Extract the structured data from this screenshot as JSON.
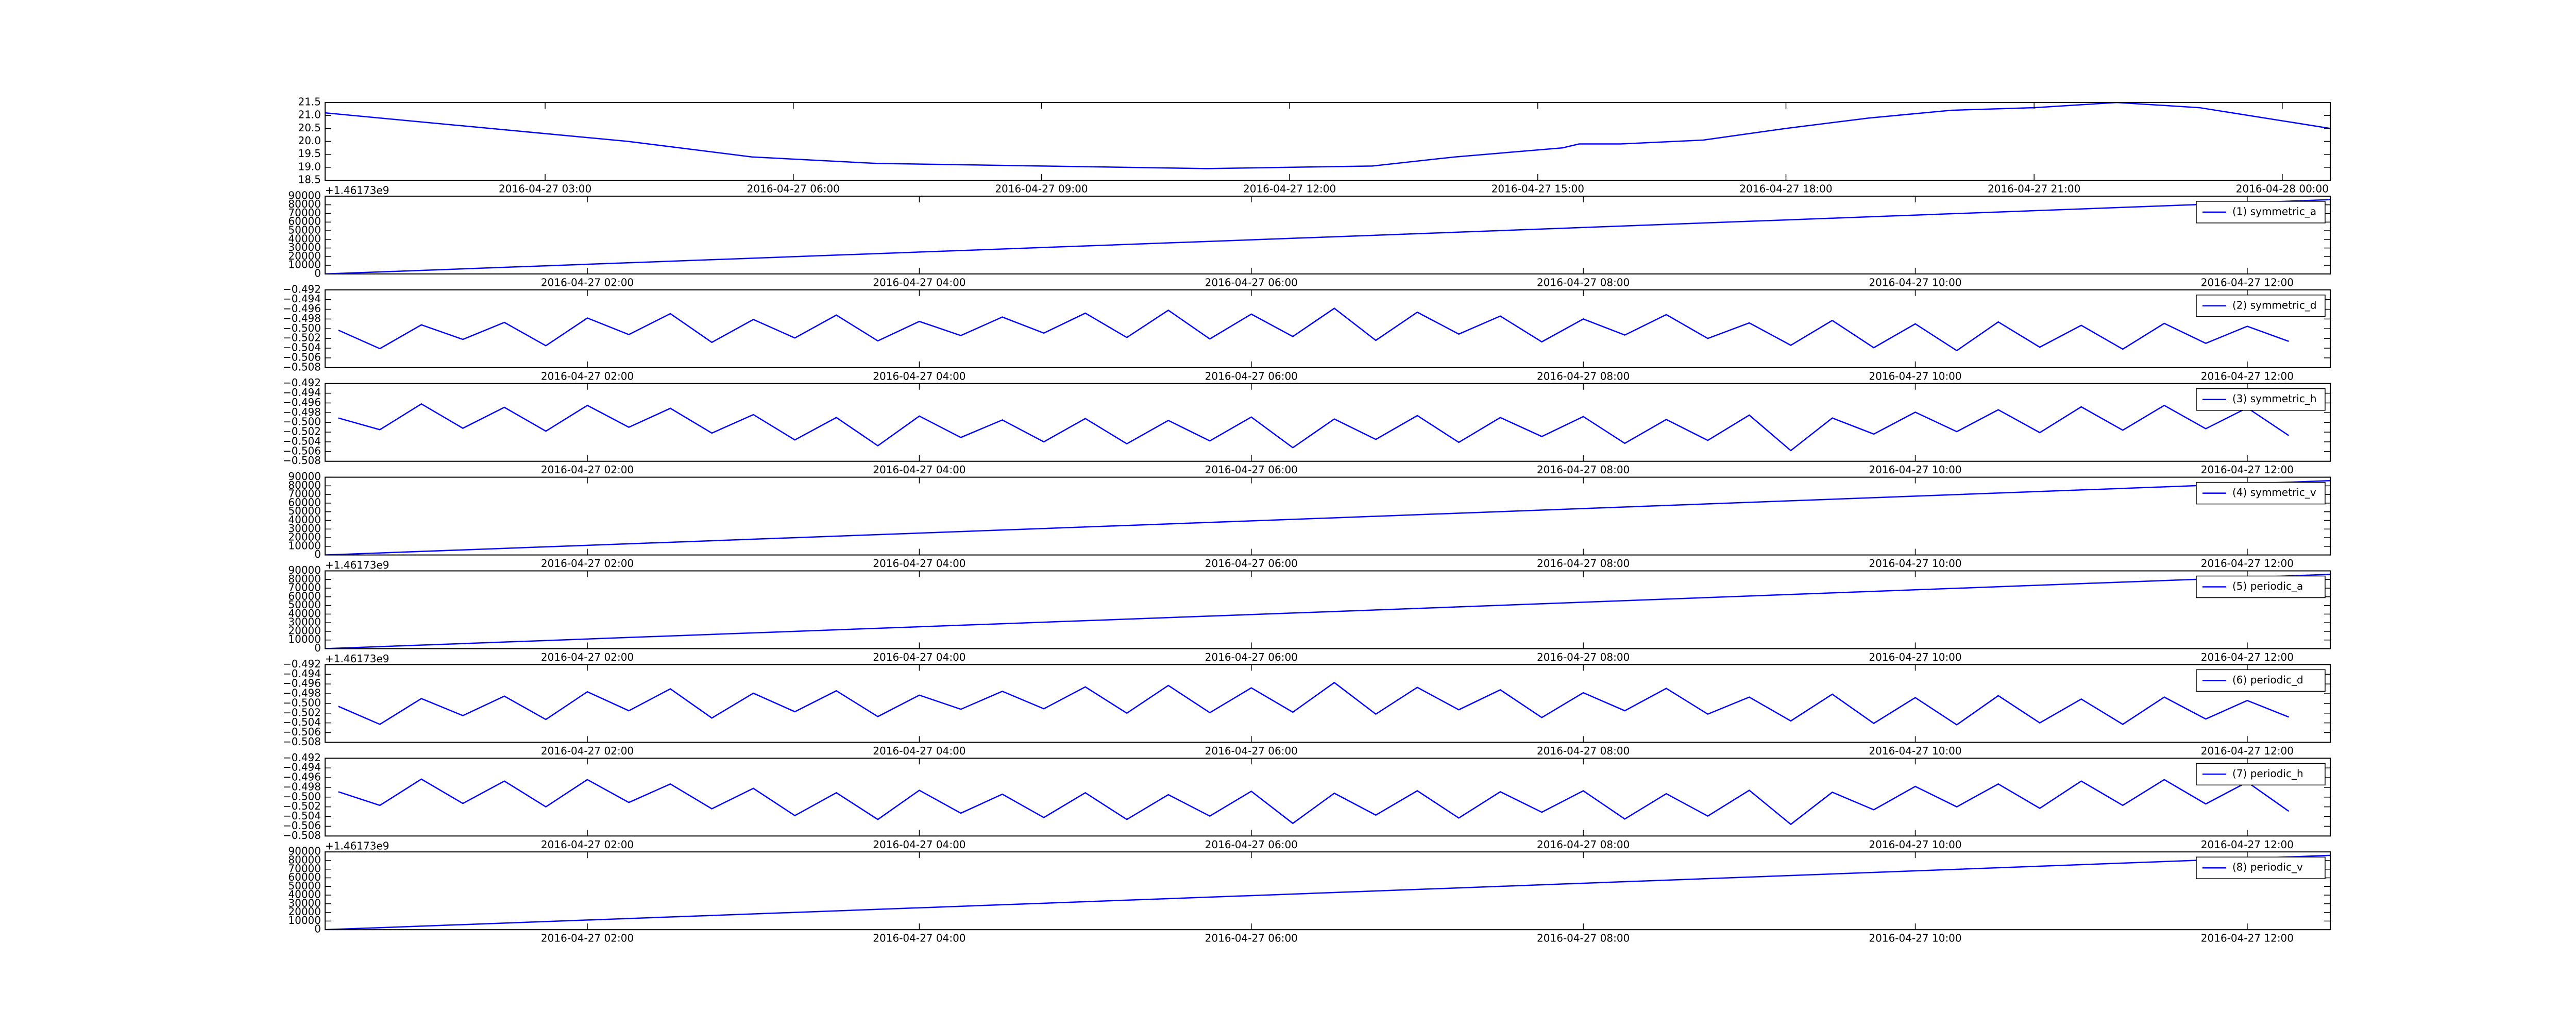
{
  "chart_data": [
    {
      "type": "line",
      "xlim": [
        0.34,
        24.58
      ],
      "ylim": [
        18.5,
        21.5
      ],
      "xticks": [
        {
          "value": 3,
          "label": "2016-04-27 03:00"
        },
        {
          "value": 6,
          "label": "2016-04-27 06:00"
        },
        {
          "value": 9,
          "label": "2016-04-27 09:00"
        },
        {
          "value": 12,
          "label": "2016-04-27 12:00"
        },
        {
          "value": 15,
          "label": "2016-04-27 15:00"
        },
        {
          "value": 18,
          "label": "2016-04-27 18:00"
        },
        {
          "value": 21,
          "label": "2016-04-27 21:00"
        },
        {
          "value": 24,
          "label": "2016-04-28 00:00"
        }
      ],
      "yticks": [
        18.5,
        {
          "value": 19,
          "label": "19.0"
        },
        19.5,
        {
          "value": 20,
          "label": "20.0"
        },
        20.5,
        {
          "value": 21,
          "label": "21.0"
        },
        21.5
      ],
      "x": [
        0.34,
        2,
        4,
        5.5,
        7,
        9,
        11,
        13,
        14,
        15.3,
        15.5,
        16,
        17,
        18,
        19,
        20,
        21,
        22,
        23,
        24.58
      ],
      "series": [
        {
          "color": "#0000ff",
          "values": [
            21.1,
            20.6,
            20.0,
            19.4,
            19.15,
            19.05,
            18.95,
            19.05,
            19.4,
            19.75,
            19.9,
            19.9,
            20.05,
            20.5,
            20.9,
            21.2,
            21.3,
            21.5,
            21.3,
            20.5
          ]
        }
      ]
    },
    {
      "type": "line",
      "offset_label": "+1.46173e9",
      "legend": "upper right",
      "xlim": [
        0.42,
        12.5
      ],
      "ylim": [
        0,
        90000
      ],
      "xticks": [
        {
          "value": 2,
          "label": "2016-04-27 02:00"
        },
        {
          "value": 4,
          "label": "2016-04-27 04:00"
        },
        {
          "value": 6,
          "label": "2016-04-27 06:00"
        },
        {
          "value": 8,
          "label": "2016-04-27 08:00"
        },
        {
          "value": 10,
          "label": "2016-04-27 10:00"
        },
        {
          "value": 12,
          "label": "2016-04-27 12:00"
        }
      ],
      "yticks": [
        0,
        10000,
        20000,
        30000,
        40000,
        50000,
        60000,
        70000,
        80000,
        90000
      ],
      "x": [
        0.42,
        6.5,
        12.5
      ],
      "series": [
        {
          "name": "(1) symmetric_a",
          "color": "#0000ff",
          "values": [
            0,
            43000,
            86000
          ]
        }
      ]
    },
    {
      "type": "line",
      "legend": "upper right",
      "xlim": [
        0.42,
        12.5
      ],
      "ylim": [
        -0.508,
        -0.492
      ],
      "xticks": [
        {
          "value": 2,
          "label": "2016-04-27 02:00"
        },
        {
          "value": 4,
          "label": "2016-04-27 04:00"
        },
        {
          "value": 6,
          "label": "2016-04-27 06:00"
        },
        {
          "value": 8,
          "label": "2016-04-27 08:00"
        },
        {
          "value": 10,
          "label": "2016-04-27 10:00"
        },
        {
          "value": 12,
          "label": "2016-04-27 12:00"
        }
      ],
      "yticks": [
        {
          "value": -0.508,
          "label": "−0.508"
        },
        {
          "value": -0.506,
          "label": "−0.506"
        },
        {
          "value": -0.504,
          "label": "−0.504"
        },
        {
          "value": -0.502,
          "label": "−0.502"
        },
        {
          "value": -0.5,
          "label": "−0.500"
        },
        {
          "value": -0.498,
          "label": "−0.498"
        },
        {
          "value": -0.496,
          "label": "−0.496"
        },
        {
          "value": -0.494,
          "label": "−0.494"
        },
        {
          "value": -0.492,
          "label": "−0.492"
        }
      ],
      "x": [
        0.5,
        0.75,
        1,
        1.25,
        1.5,
        1.75,
        2,
        2.25,
        2.5,
        2.75,
        3,
        3.25,
        3.5,
        3.75,
        4,
        4.25,
        4.5,
        4.75,
        5,
        5.25,
        5.5,
        5.75,
        6,
        6.25,
        6.5,
        6.75,
        7,
        7.25,
        7.5,
        7.75,
        8,
        8.25,
        8.5,
        8.75,
        9,
        9.25,
        9.5,
        9.75,
        10,
        10.25,
        10.5,
        10.75,
        11,
        11.25,
        11.5,
        11.75,
        12,
        12.25
      ],
      "series": [
        {
          "name": "(2) symmetric_d",
          "color": "#0000ff",
          "values": [
            -0.5003,
            -0.5041,
            -0.4992,
            -0.5022,
            -0.4987,
            -0.5035,
            -0.4978,
            -0.5012,
            -0.4969,
            -0.5028,
            -0.4981,
            -0.5019,
            -0.4972,
            -0.5025,
            -0.4985,
            -0.5014,
            -0.4976,
            -0.5009,
            -0.4968,
            -0.5018,
            -0.4962,
            -0.5021,
            -0.497,
            -0.5016,
            -0.4958,
            -0.5024,
            -0.4966,
            -0.5011,
            -0.4974,
            -0.5027,
            -0.498,
            -0.5013,
            -0.4971,
            -0.502,
            -0.4988,
            -0.5034,
            -0.4983,
            -0.5039,
            -0.499,
            -0.5045,
            -0.4986,
            -0.5038,
            -0.4993,
            -0.5042,
            -0.4989,
            -0.503,
            -0.4995,
            -0.5026
          ]
        }
      ]
    },
    {
      "type": "line",
      "legend": "upper right",
      "xlim": [
        0.42,
        12.5
      ],
      "ylim": [
        -0.508,
        -0.492
      ],
      "xticks": [
        {
          "value": 2,
          "label": "2016-04-27 02:00"
        },
        {
          "value": 4,
          "label": "2016-04-27 04:00"
        },
        {
          "value": 6,
          "label": "2016-04-27 06:00"
        },
        {
          "value": 8,
          "label": "2016-04-27 08:00"
        },
        {
          "value": 10,
          "label": "2016-04-27 10:00"
        },
        {
          "value": 12,
          "label": "2016-04-27 12:00"
        }
      ],
      "yticks": [
        {
          "value": -0.508,
          "label": "−0.508"
        },
        {
          "value": -0.506,
          "label": "−0.506"
        },
        {
          "value": -0.504,
          "label": "−0.504"
        },
        {
          "value": -0.502,
          "label": "−0.502"
        },
        {
          "value": -0.5,
          "label": "−0.500"
        },
        {
          "value": -0.498,
          "label": "−0.498"
        },
        {
          "value": -0.496,
          "label": "−0.496"
        },
        {
          "value": -0.494,
          "label": "−0.494"
        },
        {
          "value": -0.492,
          "label": "−0.492"
        }
      ],
      "x": [
        0.5,
        0.75,
        1,
        1.25,
        1.5,
        1.75,
        2,
        2.25,
        2.5,
        2.75,
        3,
        3.25,
        3.5,
        3.75,
        4,
        4.25,
        4.5,
        4.75,
        5,
        5.25,
        5.5,
        5.75,
        6,
        6.25,
        6.5,
        6.75,
        7,
        7.25,
        7.5,
        7.75,
        8,
        8.25,
        8.5,
        8.75,
        9,
        9.25,
        9.5,
        9.75,
        10,
        10.25,
        10.5,
        10.75,
        11,
        11.25,
        11.5,
        11.75,
        12,
        12.25
      ],
      "series": [
        {
          "name": "(3) symmetric_h",
          "color": "#0000ff",
          "values": [
            -0.4991,
            -0.5015,
            -0.4962,
            -0.5012,
            -0.4969,
            -0.5018,
            -0.4965,
            -0.501,
            -0.4971,
            -0.5022,
            -0.4984,
            -0.5036,
            -0.499,
            -0.5048,
            -0.4987,
            -0.5031,
            -0.4995,
            -0.504,
            -0.4992,
            -0.5044,
            -0.4996,
            -0.5038,
            -0.4989,
            -0.5052,
            -0.4993,
            -0.5035,
            -0.4986,
            -0.5041,
            -0.499,
            -0.5029,
            -0.4988,
            -0.5043,
            -0.4994,
            -0.5037,
            -0.4985,
            -0.5058,
            -0.4991,
            -0.5024,
            -0.4979,
            -0.5019,
            -0.4974,
            -0.5021,
            -0.4968,
            -0.5016,
            -0.4965,
            -0.5013,
            -0.497,
            -0.5027
          ]
        }
      ]
    },
    {
      "type": "line",
      "legend": "upper right",
      "xlim": [
        0.42,
        12.5
      ],
      "ylim": [
        0,
        90000
      ],
      "xticks": [
        {
          "value": 2,
          "label": "2016-04-27 02:00"
        },
        {
          "value": 4,
          "label": "2016-04-27 04:00"
        },
        {
          "value": 6,
          "label": "2016-04-27 06:00"
        },
        {
          "value": 8,
          "label": "2016-04-27 08:00"
        },
        {
          "value": 10,
          "label": "2016-04-27 10:00"
        },
        {
          "value": 12,
          "label": "2016-04-27 12:00"
        }
      ],
      "yticks": [
        0,
        10000,
        20000,
        30000,
        40000,
        50000,
        60000,
        70000,
        80000,
        90000
      ],
      "x": [
        0.42,
        6.5,
        12.5
      ],
      "series": [
        {
          "name": "(4) symmetric_v",
          "color": "#0000ff",
          "values": [
            0,
            43000,
            86000
          ]
        }
      ]
    },
    {
      "type": "line",
      "offset_label": "+1.46173e9",
      "legend": "upper right",
      "xlim": [
        0.42,
        12.5
      ],
      "ylim": [
        0,
        90000
      ],
      "xticks": [
        {
          "value": 2,
          "label": "2016-04-27 02:00"
        },
        {
          "value": 4,
          "label": "2016-04-27 04:00"
        },
        {
          "value": 6,
          "label": "2016-04-27 06:00"
        },
        {
          "value": 8,
          "label": "2016-04-27 08:00"
        },
        {
          "value": 10,
          "label": "2016-04-27 10:00"
        },
        {
          "value": 12,
          "label": "2016-04-27 12:00"
        }
      ],
      "yticks": [
        0,
        10000,
        20000,
        30000,
        40000,
        50000,
        60000,
        70000,
        80000,
        90000
      ],
      "x": [
        0.42,
        6.5,
        12.5
      ],
      "series": [
        {
          "name": "(5) periodic_a",
          "color": "#0000ff",
          "values": [
            0,
            43000,
            86000
          ]
        }
      ]
    },
    {
      "type": "line",
      "offset_label": "+1.46173e9",
      "legend": "upper right",
      "xlim": [
        0.42,
        12.5
      ],
      "ylim": [
        -0.508,
        -0.492
      ],
      "xticks": [
        {
          "value": 2,
          "label": "2016-04-27 02:00"
        },
        {
          "value": 4,
          "label": "2016-04-27 04:00"
        },
        {
          "value": 6,
          "label": "2016-04-27 06:00"
        },
        {
          "value": 8,
          "label": "2016-04-27 08:00"
        },
        {
          "value": 10,
          "label": "2016-04-27 10:00"
        },
        {
          "value": 12,
          "label": "2016-04-27 12:00"
        }
      ],
      "yticks": [
        {
          "value": -0.508,
          "label": "−0.508"
        },
        {
          "value": -0.506,
          "label": "−0.506"
        },
        {
          "value": -0.504,
          "label": "−0.504"
        },
        {
          "value": -0.502,
          "label": "−0.502"
        },
        {
          "value": -0.5,
          "label": "−0.500"
        },
        {
          "value": -0.498,
          "label": "−0.498"
        },
        {
          "value": -0.496,
          "label": "−0.496"
        },
        {
          "value": -0.494,
          "label": "−0.494"
        },
        {
          "value": -0.492,
          "label": "−0.492"
        }
      ],
      "x": [
        0.5,
        0.75,
        1,
        1.25,
        1.5,
        1.75,
        2,
        2.25,
        2.5,
        2.75,
        3,
        3.25,
        3.5,
        3.75,
        4,
        4.25,
        4.5,
        4.75,
        5,
        5.25,
        5.5,
        5.75,
        6,
        6.25,
        6.5,
        6.75,
        7,
        7.25,
        7.5,
        7.75,
        8,
        8.25,
        8.5,
        8.75,
        9,
        9.25,
        9.5,
        9.75,
        10,
        10.25,
        10.5,
        10.75,
        11,
        11.25,
        11.5,
        11.75,
        12,
        12.25
      ],
      "series": [
        {
          "name": "(6) periodic_d",
          "color": "#0000ff",
          "values": [
            -0.5006,
            -0.5043,
            -0.499,
            -0.5025,
            -0.4985,
            -0.5033,
            -0.4976,
            -0.5015,
            -0.497,
            -0.503,
            -0.4979,
            -0.5017,
            -0.4974,
            -0.5027,
            -0.4983,
            -0.5012,
            -0.4975,
            -0.5011,
            -0.4966,
            -0.502,
            -0.4963,
            -0.5019,
            -0.4968,
            -0.5018,
            -0.4957,
            -0.5022,
            -0.4967,
            -0.5013,
            -0.4972,
            -0.5029,
            -0.4978,
            -0.5015,
            -0.4969,
            -0.5022,
            -0.4987,
            -0.5036,
            -0.4981,
            -0.5041,
            -0.4988,
            -0.5044,
            -0.4984,
            -0.504,
            -0.4991,
            -0.5043,
            -0.4987,
            -0.5032,
            -0.4994,
            -0.5028
          ]
        }
      ]
    },
    {
      "type": "line",
      "legend": "upper right",
      "xlim": [
        0.42,
        12.5
      ],
      "ylim": [
        -0.508,
        -0.492
      ],
      "xticks": [
        {
          "value": 2,
          "label": "2016-04-27 02:00"
        },
        {
          "value": 4,
          "label": "2016-04-27 04:00"
        },
        {
          "value": 6,
          "label": "2016-04-27 06:00"
        },
        {
          "value": 8,
          "label": "2016-04-27 08:00"
        },
        {
          "value": 10,
          "label": "2016-04-27 10:00"
        },
        {
          "value": 12,
          "label": "2016-04-27 12:00"
        }
      ],
      "yticks": [
        {
          "value": -0.508,
          "label": "−0.508"
        },
        {
          "value": -0.506,
          "label": "−0.506"
        },
        {
          "value": -0.504,
          "label": "−0.504"
        },
        {
          "value": -0.502,
          "label": "−0.502"
        },
        {
          "value": -0.5,
          "label": "−0.500"
        },
        {
          "value": -0.498,
          "label": "−0.498"
        },
        {
          "value": -0.496,
          "label": "−0.496"
        },
        {
          "value": -0.494,
          "label": "−0.494"
        },
        {
          "value": -0.492,
          "label": "−0.492"
        }
      ],
      "x": [
        0.5,
        0.75,
        1,
        1.25,
        1.5,
        1.75,
        2,
        2.25,
        2.5,
        2.75,
        3,
        3.25,
        3.5,
        3.75,
        4,
        4.25,
        4.5,
        4.75,
        5,
        5.25,
        5.5,
        5.75,
        6,
        6.25,
        6.5,
        6.75,
        7,
        7.25,
        7.5,
        7.75,
        8,
        8.25,
        8.5,
        8.75,
        9,
        9.25,
        9.5,
        9.75,
        10,
        10.25,
        10.5,
        10.75,
        11,
        11.25,
        11.5,
        11.75,
        12,
        12.25
      ],
      "series": [
        {
          "name": "(7) periodic_h",
          "color": "#0000ff",
          "values": [
            -0.4989,
            -0.5017,
            -0.4963,
            -0.5013,
            -0.4967,
            -0.502,
            -0.4964,
            -0.5011,
            -0.4973,
            -0.5024,
            -0.4982,
            -0.5038,
            -0.4991,
            -0.5046,
            -0.4986,
            -0.5033,
            -0.4994,
            -0.5042,
            -0.4991,
            -0.5046,
            -0.4995,
            -0.5039,
            -0.4988,
            -0.5054,
            -0.4992,
            -0.5037,
            -0.4987,
            -0.5043,
            -0.4989,
            -0.5031,
            -0.4987,
            -0.5045,
            -0.4993,
            -0.5039,
            -0.4986,
            -0.5056,
            -0.499,
            -0.5026,
            -0.4978,
            -0.502,
            -0.4973,
            -0.5023,
            -0.4967,
            -0.5017,
            -0.4964,
            -0.5014,
            -0.4969,
            -0.5029
          ]
        }
      ]
    },
    {
      "type": "line",
      "offset_label": "+1.46173e9",
      "legend": "upper right",
      "xlim": [
        0.42,
        12.5
      ],
      "ylim": [
        0,
        90000
      ],
      "xticks": [
        {
          "value": 2,
          "label": "2016-04-27 02:00"
        },
        {
          "value": 4,
          "label": "2016-04-27 04:00"
        },
        {
          "value": 6,
          "label": "2016-04-27 06:00"
        },
        {
          "value": 8,
          "label": "2016-04-27 08:00"
        },
        {
          "value": 10,
          "label": "2016-04-27 10:00"
        },
        {
          "value": 12,
          "label": "2016-04-27 12:00"
        }
      ],
      "yticks": [
        0,
        10000,
        20000,
        30000,
        40000,
        50000,
        60000,
        70000,
        80000,
        90000
      ],
      "x": [
        0.42,
        6.5,
        12.5
      ],
      "series": [
        {
          "name": "(8) periodic_v",
          "color": "#0000ff",
          "values": [
            0,
            43000,
            86000
          ]
        }
      ]
    }
  ]
}
